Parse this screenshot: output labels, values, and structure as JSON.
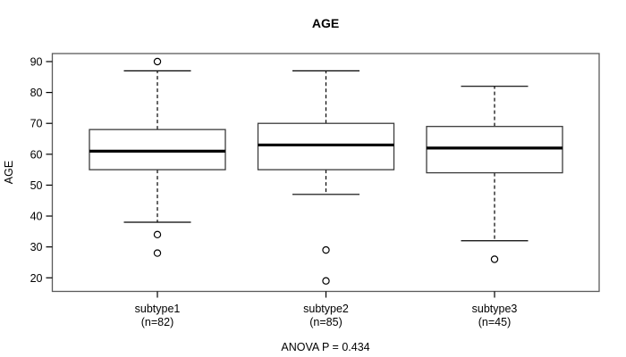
{
  "title": "AGE",
  "caption": "ANOVA P = 0.434",
  "chart_data": {
    "type": "boxplot",
    "title": "AGE",
    "xlabel": "",
    "ylabel": "AGE",
    "caption": "ANOVA P = 0.434",
    "yticks": [
      20,
      30,
      40,
      50,
      60,
      70,
      80,
      90
    ],
    "ylim": [
      15.6,
      92.6
    ],
    "grid": false,
    "legend": "none",
    "groups": [
      {
        "label": "subtype1",
        "sublabel": "(n=82)",
        "n": 82,
        "whisker_low": 38,
        "q1": 55,
        "median": 61,
        "q3": 68,
        "whisker_high": 87,
        "outliers": [
          90,
          34,
          28
        ]
      },
      {
        "label": "subtype2",
        "sublabel": "(n=85)",
        "n": 85,
        "whisker_low": 47,
        "q1": 55,
        "median": 63,
        "q3": 70,
        "whisker_high": 87,
        "outliers": [
          29,
          19
        ]
      },
      {
        "label": "subtype3",
        "sublabel": "(n=45)",
        "n": 45,
        "whisker_low": 32,
        "q1": 54,
        "median": 62,
        "q3": 69,
        "whisker_high": 82,
        "outliers": [
          26
        ]
      }
    ],
    "colors": {
      "frame": "#5a5a5a",
      "box_border": "#3c3c3c",
      "median": "#000000",
      "whisker": "#000000",
      "text": "#000000",
      "background": "#ffffff"
    }
  }
}
